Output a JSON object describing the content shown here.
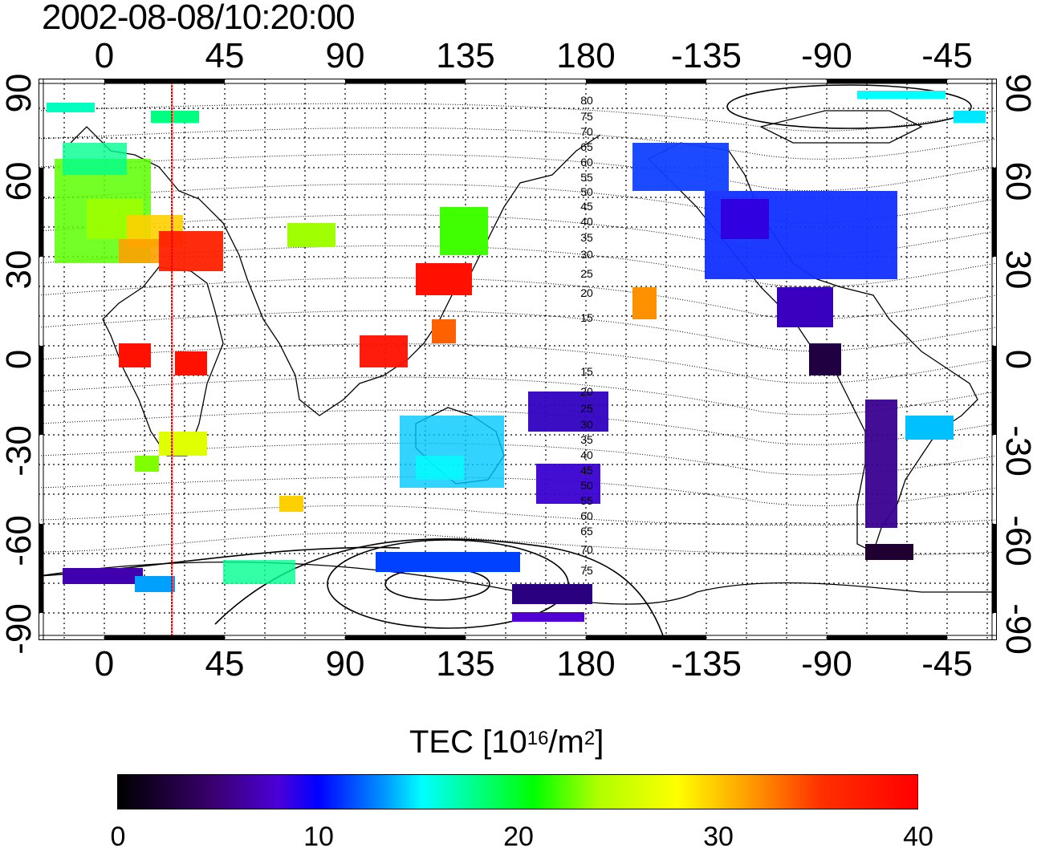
{
  "timestamp": "2002-08-08/10:20:00",
  "top_lon_labels": [
    "0",
    "45",
    "90",
    "135",
    "180",
    "-135",
    "-90",
    "-45"
  ],
  "bottom_lon_labels": [
    "0",
    "45",
    "90",
    "135",
    "180",
    "-135",
    "-90",
    "-45"
  ],
  "lat_labels": [
    "90",
    "60",
    "30",
    "0",
    "-30",
    "-60",
    "-90"
  ],
  "contour_labels_north": [
    "80",
    "75",
    "70",
    "65",
    "60",
    "55",
    "50",
    "45",
    "40",
    "35",
    "30",
    "25",
    "20",
    "15"
  ],
  "contour_labels_south": [
    "15",
    "20",
    "25",
    "30",
    "35",
    "40",
    "45",
    "50",
    "55",
    "60",
    "65",
    "70",
    "75"
  ],
  "colorbar": {
    "title_prefix": "TEC  [10",
    "title_sup1": "16",
    "title_mid": "/m",
    "title_sup2": "2",
    "title_suffix": "]",
    "ticks": [
      "0",
      "10",
      "20",
      "30",
      "40"
    ],
    "range": [
      0,
      40
    ]
  },
  "colors": {
    "marker_line": "#ff0000",
    "scale_low": "#000000",
    "scale_high": "#ff0000"
  }
}
